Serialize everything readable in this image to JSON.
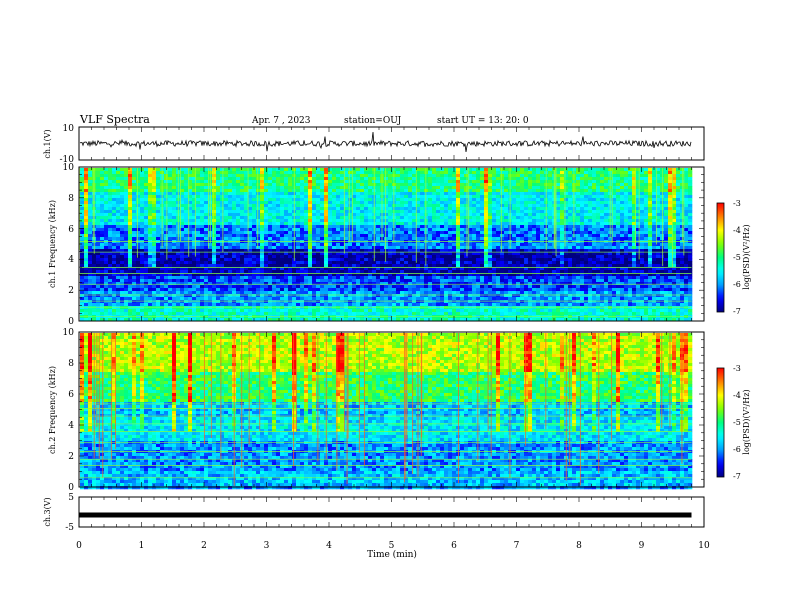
{
  "header": {
    "title": "VLF Spectra",
    "date": "Apr. 7 , 2023",
    "station": "station=OUJ",
    "start": "start UT = 13: 20: 0"
  },
  "chart_data": [
    {
      "type": "line",
      "panel": "ch1-waveform",
      "ylabel": "ch.1(V)",
      "ylim": [
        -10,
        10
      ],
      "y_tick_labels": [
        "10",
        "-10"
      ],
      "xlim": [
        0,
        10
      ],
      "trace_color": "#000000",
      "baseline_value": 0
    },
    {
      "type": "heatmap",
      "panel": "ch1-spectrogram",
      "ylabel": "ch.1 Frequency (kHz)",
      "ylim": [
        0,
        10
      ],
      "y_ticks": [
        "0",
        "2",
        "4",
        "6",
        "8",
        "10"
      ],
      "xlim": [
        0,
        10
      ],
      "data_end_min": 9.8,
      "level_bands_log_psd": [
        {
          "f_khz": [
            0,
            1
          ],
          "level": -5.3
        },
        {
          "f_khz": [
            1,
            2
          ],
          "level": -6.0
        },
        {
          "f_khz": [
            2,
            3
          ],
          "level": -6.3
        },
        {
          "f_khz": [
            3,
            4.8
          ],
          "level": -6.8
        },
        {
          "f_khz": [
            4.8,
            6.2
          ],
          "level": -6.1
        },
        {
          "f_khz": [
            6.2,
            8.5
          ],
          "level": -5.5
        },
        {
          "f_khz": [
            8.5,
            10
          ],
          "level": -5.0
        }
      ],
      "colorbar": {
        "label": "log(PSD)(V²/Hz)",
        "range": [
          -7,
          -3
        ],
        "ticks": [
          "-3",
          "-4",
          "-5",
          "-6",
          "-7"
        ]
      }
    },
    {
      "type": "heatmap",
      "panel": "ch2-spectrogram",
      "ylabel": "ch.2 Frequency (kHz)",
      "ylim": [
        0,
        10
      ],
      "y_ticks": [
        "0",
        "2",
        "4",
        "6",
        "8",
        "10"
      ],
      "xlim": [
        0,
        10
      ],
      "data_end_min": 9.8,
      "level_bands_log_psd": [
        {
          "f_khz": [
            0,
            1
          ],
          "level": -5.8
        },
        {
          "f_khz": [
            1,
            3
          ],
          "level": -6.0
        },
        {
          "f_khz": [
            3,
            4.5
          ],
          "level": -5.6
        },
        {
          "f_khz": [
            4.5,
            5.5
          ],
          "level": -5.8
        },
        {
          "f_khz": [
            5.5,
            7.5
          ],
          "level": -4.9
        },
        {
          "f_khz": [
            7.5,
            10
          ],
          "level": -4.3
        }
      ],
      "colorbar": {
        "label": "log(PSD)(V²/Hz)",
        "range": [
          -7,
          -3
        ],
        "ticks": [
          "-3",
          "-4",
          "-5",
          "-6",
          "-7"
        ]
      }
    },
    {
      "type": "line",
      "panel": "ch3-waveform",
      "ylabel": "ch.3(V)",
      "ylim": [
        -5,
        5
      ],
      "y_tick_labels": [
        "5",
        "-5"
      ],
      "xlim": [
        0,
        10
      ],
      "value": -1,
      "trace_color": "#000000"
    }
  ],
  "x_axis": {
    "label": "Time (min)",
    "ticks": [
      "0",
      "1",
      "2",
      "3",
      "4",
      "5",
      "6",
      "7",
      "8",
      "9",
      "10"
    ],
    "range": [
      0,
      10
    ]
  },
  "colormap": [
    "#000080",
    "#0000ff",
    "#00a0ff",
    "#00ffff",
    "#00ff80",
    "#80ff00",
    "#ffff00",
    "#ff8000",
    "#ff0000",
    "#ffffff"
  ]
}
